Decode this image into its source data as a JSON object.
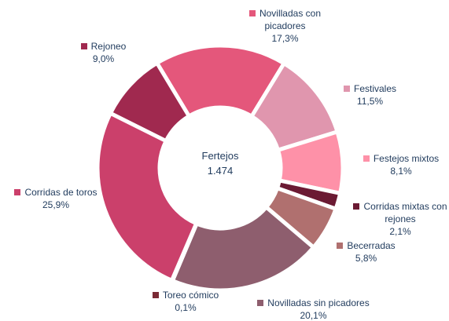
{
  "chart_data": {
    "type": "donut",
    "center_label": "Fertejos",
    "center_value": "1.474",
    "categories": [
      "Novilladas con picadores",
      "Festivales",
      "Festejos mixtos",
      "Corridas mixtas con rejones",
      "Becerradas",
      "Novilladas sin picadores",
      "Toreo cómico",
      "Corridas de toros",
      "Rejoneo"
    ],
    "values": [
      17.3,
      11.5,
      8.1,
      2.1,
      5.8,
      20.1,
      0.1,
      25.9,
      9.0
    ],
    "value_labels": [
      "17,3%",
      "11,5%",
      "8,1%",
      "2,1%",
      "5,8%",
      "20,1%",
      "0,1%",
      "25,9%",
      "9,0%"
    ],
    "colors": [
      "#e4577b",
      "#e096ae",
      "#fe91a8",
      "#6b1a33",
      "#b0706f",
      "#8e5e6e",
      "#7a2a35",
      "#cb406b",
      "#a0294f"
    ]
  }
}
